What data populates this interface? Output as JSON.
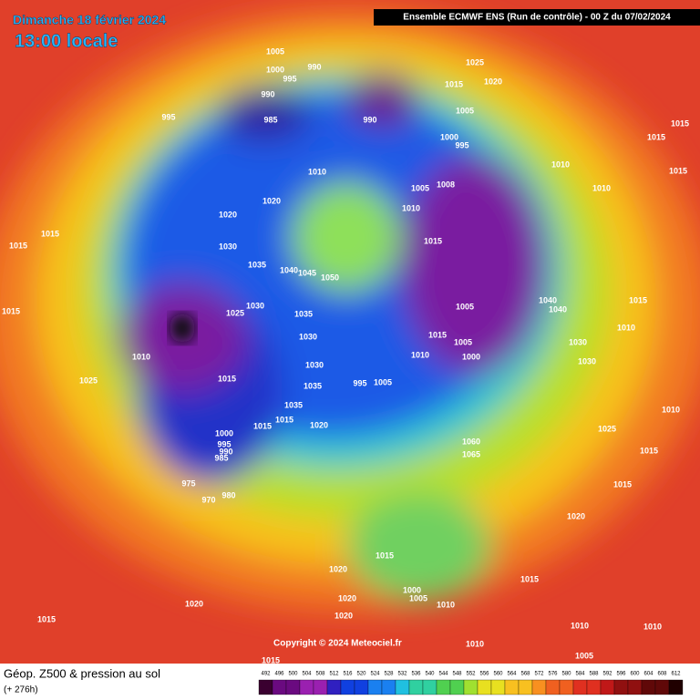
{
  "header": {
    "date": "Dimanche 18 février 2024",
    "time": "13:00 locale",
    "run": "Ensemble ECMWF ENS  (Run de contrôle)  -  00 Z du 07/02/2024"
  },
  "footer": {
    "title": "Géop. Z500 & pression au sol",
    "lead": "(+ 276h)",
    "copyright": "Copyright © 2024 Meteociel.fr"
  },
  "colorbar": [
    492,
    496,
    500,
    504,
    508,
    512,
    516,
    520,
    524,
    528,
    532,
    536,
    540,
    544,
    548,
    552,
    556,
    560,
    564,
    568,
    572,
    576,
    580,
    584,
    588,
    592,
    596,
    600,
    604,
    608,
    612
  ],
  "pressure_labels": [
    1005,
    990,
    1000,
    995,
    1025,
    1015,
    1020,
    990,
    985,
    990,
    995,
    1005,
    1000,
    995,
    1015,
    1015,
    1010,
    1010,
    1010,
    1005,
    1008,
    1010,
    1020,
    1020,
    1015,
    1015,
    1030,
    1015,
    1035,
    1040,
    1045,
    1050,
    1040,
    1040,
    1005,
    1030,
    1025,
    1035,
    1030,
    1015,
    1005,
    1030,
    1030,
    1010,
    1010,
    1000,
    1015,
    1015,
    1010,
    1015,
    1030,
    1035,
    1005,
    995,
    1025,
    1035,
    1015,
    1020,
    1015,
    1000,
    1060,
    1065,
    1025,
    1015,
    995,
    990,
    985,
    975,
    970,
    980,
    1015,
    1010,
    1020,
    1015,
    1015,
    1020,
    1020,
    1005,
    1000,
    1010,
    1020,
    1020,
    1015,
    1010,
    1010,
    1010,
    1005,
    1015,
    1015
  ]
}
